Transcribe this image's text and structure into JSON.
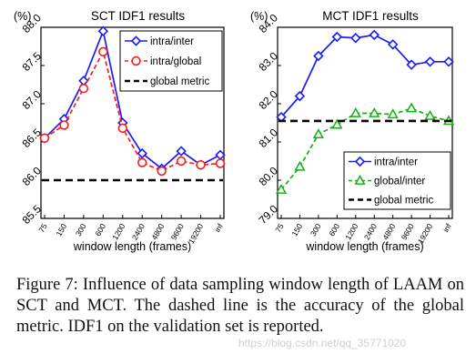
{
  "colors": {
    "intra_inter": "#1a1aff",
    "intra_global": "#ff1a1a",
    "global_inter": "#16b016",
    "global_metric": "#000000"
  },
  "chart_data": [
    {
      "type": "line",
      "title": "SCT IDF1 results",
      "unit_label": "(%)",
      "xlabel": "window length (frames)",
      "ylabel": "",
      "categories": [
        "75",
        "150",
        "300",
        "600",
        "1200",
        "2400",
        "4800",
        "9600",
        "19200",
        "inf"
      ],
      "ylim": [
        85.5,
        88.0
      ],
      "yticks": [
        "85.5",
        "86.0",
        "86.5",
        "87.0",
        "87.5",
        "88.0"
      ],
      "grid": false,
      "legend_position": "top-right",
      "series": [
        {
          "name": "intra/inter",
          "marker": "diamond",
          "color_key": "intra_inter",
          "style": "solid",
          "values": [
            86.55,
            86.8,
            87.3,
            87.95,
            86.75,
            86.35,
            86.15,
            86.38,
            86.2,
            86.33
          ]
        },
        {
          "name": "intra/global",
          "marker": "circle",
          "color_key": "intra_global",
          "style": "dashed",
          "values": [
            86.55,
            86.72,
            87.2,
            87.68,
            86.68,
            86.23,
            86.12,
            86.25,
            86.2,
            86.22
          ]
        },
        {
          "name": "global metric",
          "marker": "none",
          "color_key": "global_metric",
          "style": "dashed",
          "values": [
            86.0,
            86.0,
            86.0,
            86.0,
            86.0,
            86.0,
            86.0,
            86.0,
            86.0,
            86.0
          ]
        }
      ]
    },
    {
      "type": "line",
      "title": "MCT IDF1 results",
      "unit_label": "(%)",
      "xlabel": "window length (frames)",
      "ylabel": "",
      "categories": [
        "75",
        "150",
        "300",
        "600",
        "1200",
        "2400",
        "4800",
        "9600",
        "19200",
        "inf"
      ],
      "ylim": [
        79.0,
        84.0
      ],
      "yticks": [
        "79.0",
        "80.0",
        "81.0",
        "82.0",
        "83.0",
        "84.0"
      ],
      "grid": false,
      "legend_position": "bottom-right",
      "series": [
        {
          "name": "intra/inter",
          "marker": "diamond",
          "color_key": "intra_inter",
          "style": "solid",
          "values": [
            81.65,
            82.2,
            83.25,
            83.75,
            83.72,
            83.8,
            83.55,
            83.02,
            83.1,
            83.1
          ]
        },
        {
          "name": "global/inter",
          "marker": "triangle",
          "color_key": "global_inter",
          "style": "dashed",
          "values": [
            79.75,
            80.35,
            81.2,
            81.45,
            81.75,
            81.75,
            81.72,
            81.88,
            81.68,
            81.55
          ]
        },
        {
          "name": "global metric",
          "marker": "none",
          "color_key": "global_metric",
          "style": "dashed",
          "values": [
            81.55,
            81.55,
            81.55,
            81.55,
            81.55,
            81.55,
            81.55,
            81.55,
            81.55,
            81.55
          ]
        }
      ]
    }
  ],
  "caption": "Figure 7:  Influence of data sampling window length of LAAM on SCT and MCT. The dashed line is the accuracy of the global metric. IDF1 on the validation set is reported.",
  "watermark": "https://blog.csdn.net/qq_35771020"
}
